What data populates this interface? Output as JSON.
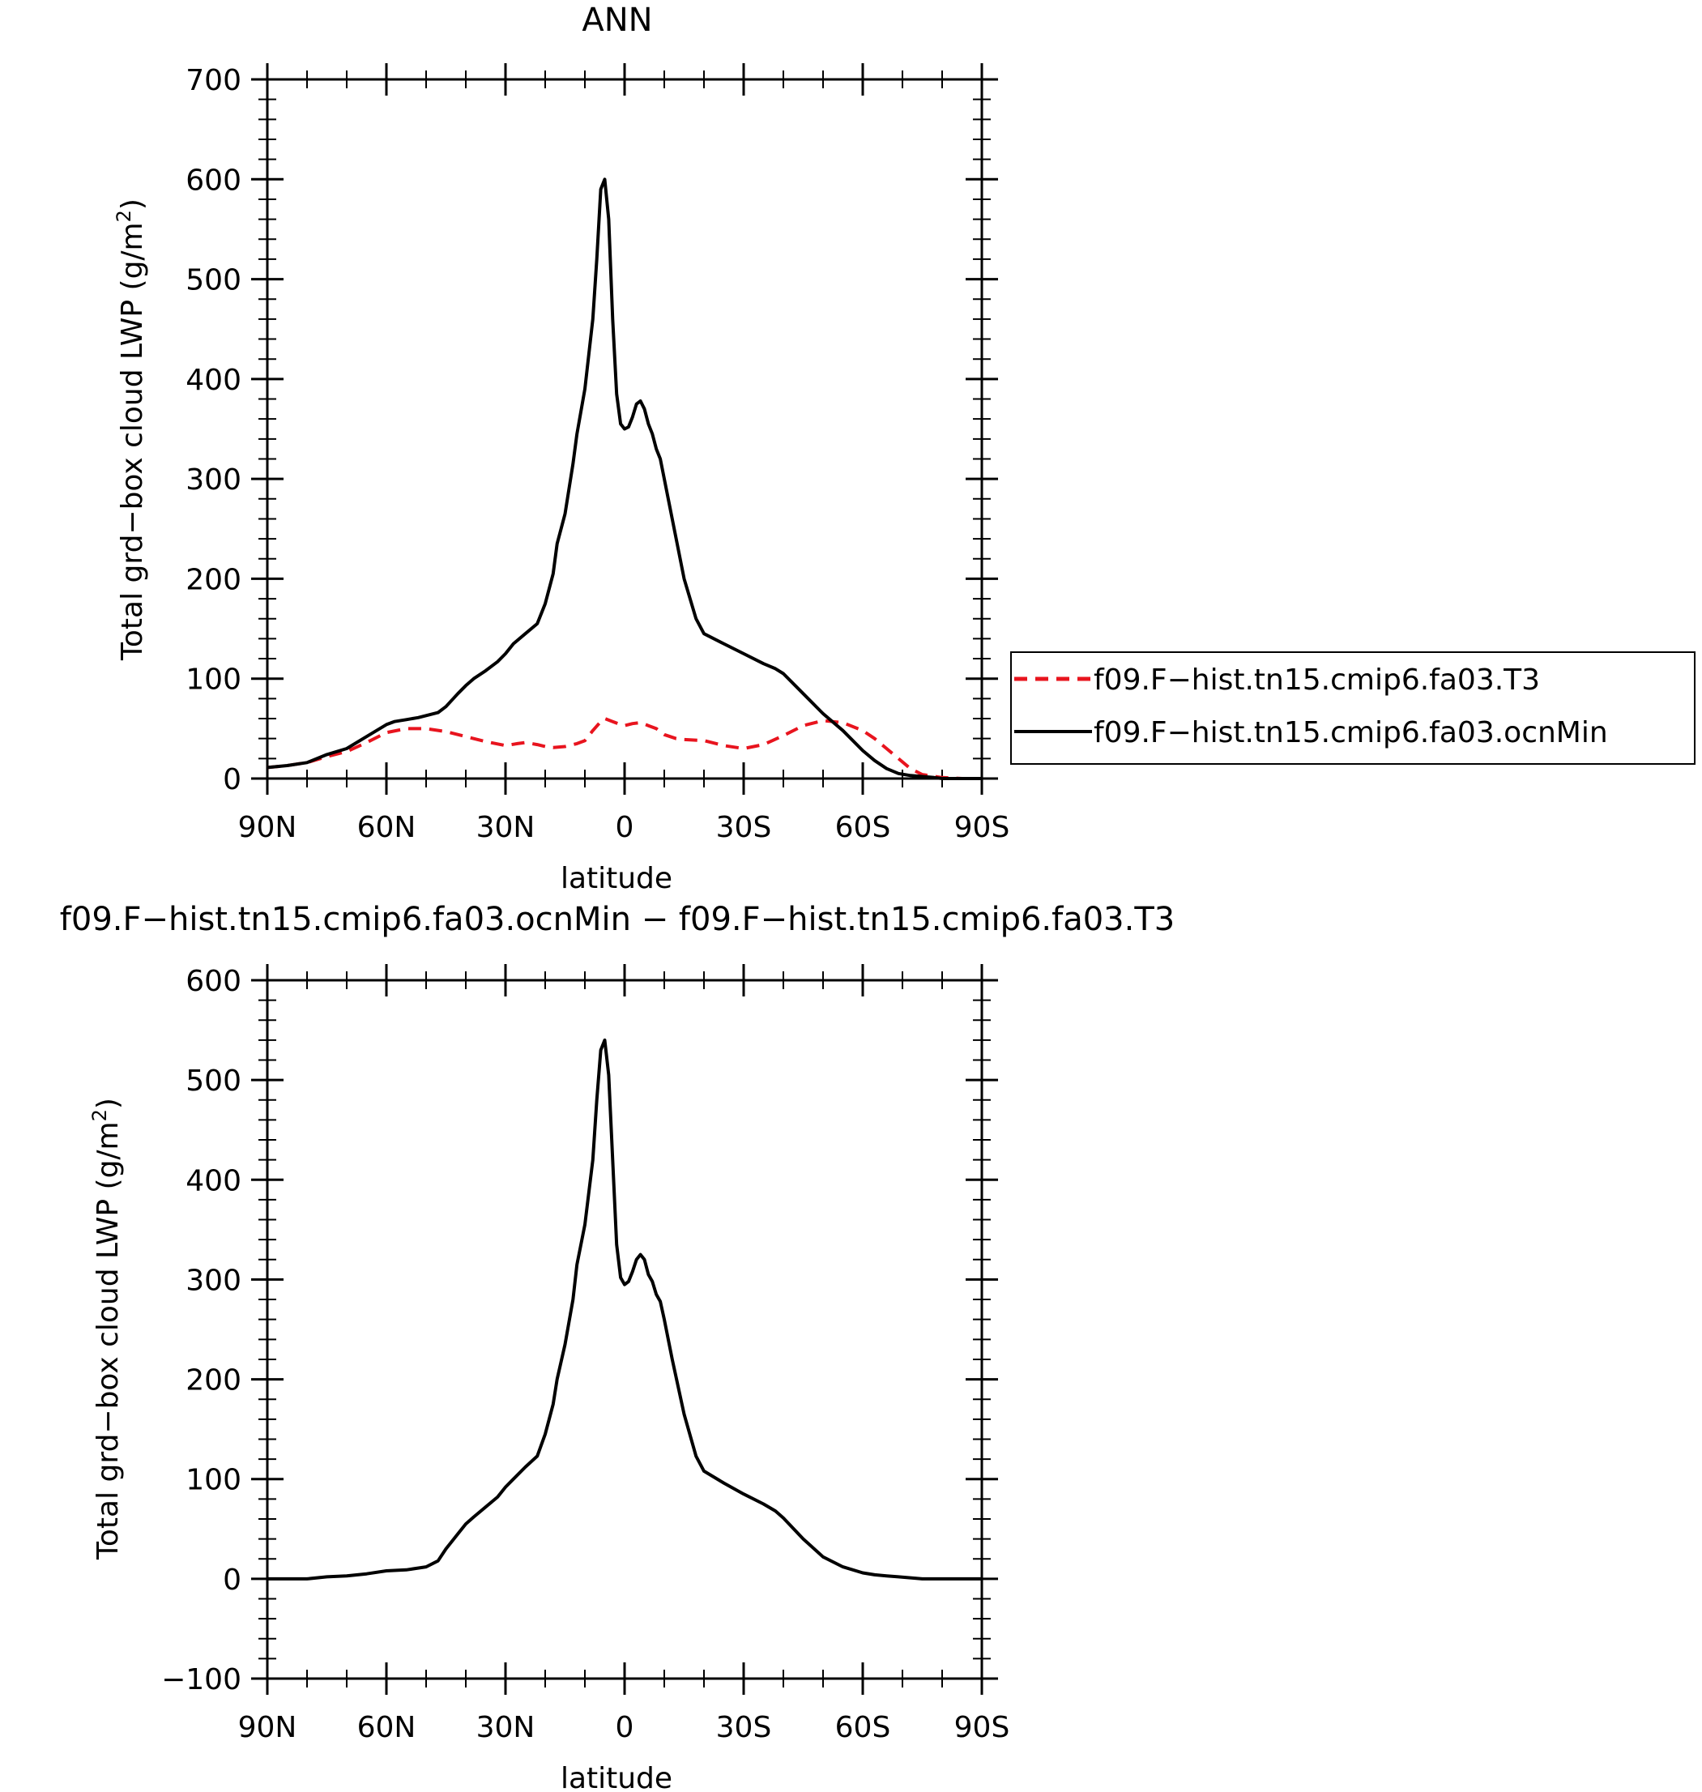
{
  "chart_data": [
    {
      "type": "line",
      "title": "ANN",
      "xlabel": "latitude",
      "ylabel": "Total grd−box cloud LWP (g/m²)",
      "ylabel_main": "Total grd−box cloud LWP (g/m",
      "ylabel_sup": "2",
      "ylabel_end": ")",
      "xlim": [
        90,
        -90
      ],
      "ylim": [
        0,
        700
      ],
      "yticks": [
        0,
        100,
        200,
        300,
        400,
        500,
        600,
        700
      ],
      "ytick_labels": [
        "0",
        "100",
        "200",
        "300",
        "400",
        "500",
        "600",
        "700"
      ],
      "xticks": [
        90,
        60,
        30,
        0,
        -30,
        -60,
        -90
      ],
      "xtick_labels": [
        "90N",
        "60N",
        "30N",
        "0",
        "30S",
        "60S",
        "90S"
      ],
      "legend_position": "right",
      "series": [
        {
          "name": "f09.F−hist.tn15.cmip6.fa03.T3",
          "color": "#e8141e",
          "style": "dashed",
          "x": [
            90,
            85,
            80,
            75,
            70,
            65,
            60,
            55,
            50,
            45,
            40,
            35,
            30,
            27,
            25,
            22,
            20,
            18,
            15,
            12,
            10,
            8,
            6,
            5,
            3,
            1,
            0,
            -2,
            -4,
            -6,
            -8,
            -10,
            -13,
            -15,
            -20,
            -25,
            -30,
            -35,
            -40,
            -45,
            -50,
            -55,
            -60,
            -63,
            -66,
            -69,
            -72,
            -75,
            -80,
            -85,
            -90
          ],
          "y": [
            11,
            13,
            16,
            22,
            27,
            36,
            46,
            50,
            50,
            47,
            42,
            37,
            33,
            35,
            36,
            34,
            32,
            31,
            32,
            35,
            38,
            48,
            57,
            60,
            57,
            54,
            53,
            55,
            56,
            53,
            50,
            44,
            40,
            39,
            38,
            33,
            30,
            34,
            43,
            53,
            58,
            56,
            48,
            40,
            30,
            20,
            10,
            4,
            1,
            0,
            0
          ]
        },
        {
          "name": "f09.F−hist.tn15.cmip6.fa03.ocnMin",
          "color": "#000000",
          "style": "solid",
          "x": [
            90,
            85,
            80,
            75,
            70,
            65,
            60,
            58,
            55,
            52,
            50,
            47,
            45,
            42,
            40,
            38,
            35,
            32,
            30,
            28,
            25,
            22,
            20,
            18,
            17,
            15,
            13,
            12,
            10,
            8,
            7,
            6,
            5,
            4,
            3,
            2,
            1,
            0,
            -1,
            -2,
            -3,
            -4,
            -5,
            -6,
            -7,
            -8,
            -9,
            -10,
            -11,
            -12,
            -15,
            -18,
            -20,
            -25,
            -30,
            -35,
            -38,
            -40,
            -45,
            -50,
            -55,
            -60,
            -63,
            -66,
            -69,
            -72,
            -75,
            -78,
            -80,
            -85,
            -90
          ],
          "y": [
            11,
            13,
            16,
            24,
            30,
            42,
            54,
            57,
            59,
            61,
            63,
            66,
            72,
            85,
            93,
            100,
            108,
            117,
            125,
            135,
            145,
            155,
            175,
            205,
            235,
            265,
            315,
            345,
            390,
            460,
            520,
            590,
            600,
            560,
            460,
            385,
            355,
            350,
            352,
            362,
            375,
            378,
            370,
            355,
            345,
            330,
            320,
            300,
            280,
            260,
            200,
            160,
            145,
            135,
            125,
            115,
            110,
            105,
            85,
            65,
            48,
            28,
            18,
            10,
            5,
            3,
            2,
            1,
            0,
            0,
            0
          ]
        }
      ]
    },
    {
      "type": "line",
      "title": "f09.F−hist.tn15.cmip6.fa03.ocnMin − f09.F−hist.tn15.cmip6.fa03.T3",
      "xlabel": "latitude",
      "ylabel": "Total grd−box cloud LWP (g/m²)",
      "ylabel_main": "Total grd−box cloud LWP (g/m",
      "ylabel_sup": "2",
      "ylabel_end": ")",
      "xlim": [
        90,
        -90
      ],
      "ylim": [
        -100,
        600
      ],
      "yticks": [
        -100,
        0,
        100,
        200,
        300,
        400,
        500,
        600
      ],
      "ytick_labels": [
        "−100",
        "0",
        "100",
        "200",
        "300",
        "400",
        "500",
        "600"
      ],
      "xticks": [
        90,
        60,
        30,
        0,
        -30,
        -60,
        -90
      ],
      "xtick_labels": [
        "90N",
        "60N",
        "30N",
        "0",
        "30S",
        "60S",
        "90S"
      ],
      "series": [
        {
          "color": "#000000",
          "style": "solid",
          "x": [
            90,
            85,
            80,
            75,
            70,
            65,
            60,
            55,
            50,
            47,
            45,
            42,
            40,
            38,
            35,
            32,
            30,
            28,
            25,
            22,
            20,
            18,
            17,
            15,
            13,
            12,
            10,
            8,
            7,
            6,
            5,
            4,
            3,
            2,
            1,
            0,
            -1,
            -2,
            -3,
            -4,
            -5,
            -6,
            -7,
            -8,
            -9,
            -10,
            -11,
            -12,
            -15,
            -18,
            -20,
            -25,
            -30,
            -35,
            -38,
            -40,
            -45,
            -50,
            -55,
            -60,
            -63,
            -66,
            -69,
            -72,
            -75,
            -80,
            -85,
            -90
          ],
          "y": [
            0,
            0,
            0,
            2,
            3,
            5,
            8,
            9,
            12,
            18,
            30,
            45,
            55,
            62,
            72,
            82,
            92,
            100,
            112,
            123,
            145,
            175,
            200,
            235,
            280,
            315,
            355,
            420,
            480,
            530,
            540,
            505,
            420,
            335,
            302,
            295,
            298,
            308,
            320,
            325,
            320,
            305,
            298,
            285,
            278,
            260,
            240,
            220,
            165,
            123,
            108,
            96,
            85,
            75,
            68,
            61,
            40,
            22,
            12,
            6,
            4,
            3,
            2,
            1,
            0,
            0,
            0,
            0
          ]
        }
      ]
    }
  ]
}
